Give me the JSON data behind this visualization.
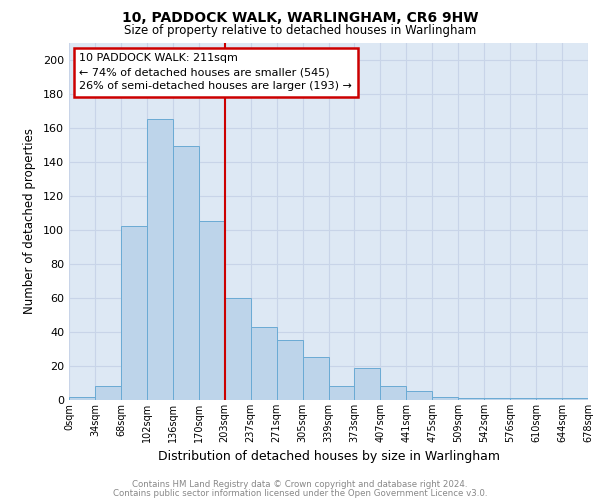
{
  "title": "10, PADDOCK WALK, WARLINGHAM, CR6 9HW",
  "subtitle": "Size of property relative to detached houses in Warlingham",
  "xlabel": "Distribution of detached houses by size in Warlingham",
  "ylabel": "Number of detached properties",
  "footer_line1": "Contains HM Land Registry data © Crown copyright and database right 2024.",
  "footer_line2": "Contains public sector information licensed under the Open Government Licence v3.0.",
  "bin_labels": [
    "0sqm",
    "34sqm",
    "68sqm",
    "102sqm",
    "136sqm",
    "170sqm",
    "203sqm",
    "237sqm",
    "271sqm",
    "305sqm",
    "339sqm",
    "373sqm",
    "407sqm",
    "441sqm",
    "475sqm",
    "509sqm",
    "542sqm",
    "576sqm",
    "610sqm",
    "644sqm",
    "678sqm"
  ],
  "bar_values": [
    2,
    8,
    102,
    165,
    149,
    105,
    60,
    43,
    35,
    25,
    8,
    19,
    8,
    5,
    2,
    1,
    1,
    1,
    1,
    1
  ],
  "bar_color": "#bdd4ea",
  "bar_edge_color": "#6aaad4",
  "annotation_text_line1": "10 PADDOCK WALK: 211sqm",
  "annotation_text_line2": "← 74% of detached houses are smaller (545)",
  "annotation_text_line3": "26% of semi-detached houses are larger (193) →",
  "annotation_box_color": "#cc0000",
  "ylim": [
    0,
    210
  ],
  "yticks": [
    0,
    20,
    40,
    60,
    80,
    100,
    120,
    140,
    160,
    180,
    200
  ],
  "grid_color": "#c8d4e8",
  "background_color": "#dde8f4",
  "vline_x_bin": 6,
  "vline_color": "#cc0000"
}
